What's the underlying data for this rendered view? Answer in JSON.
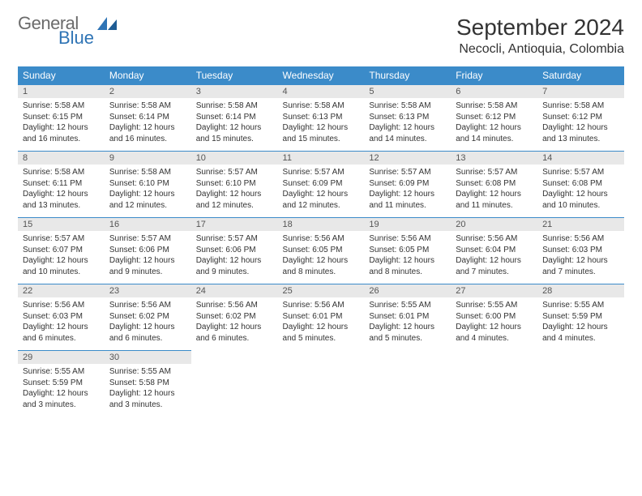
{
  "brand": {
    "name_top": "General",
    "name_bottom": "Blue"
  },
  "title": "September 2024",
  "location": "Necocli, Antioquia, Colombia",
  "colors": {
    "header_bg": "#3b8bc9",
    "header_fg": "#ffffff",
    "daynum_bg": "#e8e8e8",
    "rule": "#3b8bc9",
    "logo_gray": "#6b6b6b",
    "logo_blue": "#2f74b5"
  },
  "weekdays": [
    "Sunday",
    "Monday",
    "Tuesday",
    "Wednesday",
    "Thursday",
    "Friday",
    "Saturday"
  ],
  "cells": [
    {
      "n": "1",
      "sr": "Sunrise: 5:58 AM",
      "ss": "Sunset: 6:15 PM",
      "d1": "Daylight: 12 hours",
      "d2": "and 16 minutes."
    },
    {
      "n": "2",
      "sr": "Sunrise: 5:58 AM",
      "ss": "Sunset: 6:14 PM",
      "d1": "Daylight: 12 hours",
      "d2": "and 16 minutes."
    },
    {
      "n": "3",
      "sr": "Sunrise: 5:58 AM",
      "ss": "Sunset: 6:14 PM",
      "d1": "Daylight: 12 hours",
      "d2": "and 15 minutes."
    },
    {
      "n": "4",
      "sr": "Sunrise: 5:58 AM",
      "ss": "Sunset: 6:13 PM",
      "d1": "Daylight: 12 hours",
      "d2": "and 15 minutes."
    },
    {
      "n": "5",
      "sr": "Sunrise: 5:58 AM",
      "ss": "Sunset: 6:13 PM",
      "d1": "Daylight: 12 hours",
      "d2": "and 14 minutes."
    },
    {
      "n": "6",
      "sr": "Sunrise: 5:58 AM",
      "ss": "Sunset: 6:12 PM",
      "d1": "Daylight: 12 hours",
      "d2": "and 14 minutes."
    },
    {
      "n": "7",
      "sr": "Sunrise: 5:58 AM",
      "ss": "Sunset: 6:12 PM",
      "d1": "Daylight: 12 hours",
      "d2": "and 13 minutes."
    },
    {
      "n": "8",
      "sr": "Sunrise: 5:58 AM",
      "ss": "Sunset: 6:11 PM",
      "d1": "Daylight: 12 hours",
      "d2": "and 13 minutes."
    },
    {
      "n": "9",
      "sr": "Sunrise: 5:58 AM",
      "ss": "Sunset: 6:10 PM",
      "d1": "Daylight: 12 hours",
      "d2": "and 12 minutes."
    },
    {
      "n": "10",
      "sr": "Sunrise: 5:57 AM",
      "ss": "Sunset: 6:10 PM",
      "d1": "Daylight: 12 hours",
      "d2": "and 12 minutes."
    },
    {
      "n": "11",
      "sr": "Sunrise: 5:57 AM",
      "ss": "Sunset: 6:09 PM",
      "d1": "Daylight: 12 hours",
      "d2": "and 12 minutes."
    },
    {
      "n": "12",
      "sr": "Sunrise: 5:57 AM",
      "ss": "Sunset: 6:09 PM",
      "d1": "Daylight: 12 hours",
      "d2": "and 11 minutes."
    },
    {
      "n": "13",
      "sr": "Sunrise: 5:57 AM",
      "ss": "Sunset: 6:08 PM",
      "d1": "Daylight: 12 hours",
      "d2": "and 11 minutes."
    },
    {
      "n": "14",
      "sr": "Sunrise: 5:57 AM",
      "ss": "Sunset: 6:08 PM",
      "d1": "Daylight: 12 hours",
      "d2": "and 10 minutes."
    },
    {
      "n": "15",
      "sr": "Sunrise: 5:57 AM",
      "ss": "Sunset: 6:07 PM",
      "d1": "Daylight: 12 hours",
      "d2": "and 10 minutes."
    },
    {
      "n": "16",
      "sr": "Sunrise: 5:57 AM",
      "ss": "Sunset: 6:06 PM",
      "d1": "Daylight: 12 hours",
      "d2": "and 9 minutes."
    },
    {
      "n": "17",
      "sr": "Sunrise: 5:57 AM",
      "ss": "Sunset: 6:06 PM",
      "d1": "Daylight: 12 hours",
      "d2": "and 9 minutes."
    },
    {
      "n": "18",
      "sr": "Sunrise: 5:56 AM",
      "ss": "Sunset: 6:05 PM",
      "d1": "Daylight: 12 hours",
      "d2": "and 8 minutes."
    },
    {
      "n": "19",
      "sr": "Sunrise: 5:56 AM",
      "ss": "Sunset: 6:05 PM",
      "d1": "Daylight: 12 hours",
      "d2": "and 8 minutes."
    },
    {
      "n": "20",
      "sr": "Sunrise: 5:56 AM",
      "ss": "Sunset: 6:04 PM",
      "d1": "Daylight: 12 hours",
      "d2": "and 7 minutes."
    },
    {
      "n": "21",
      "sr": "Sunrise: 5:56 AM",
      "ss": "Sunset: 6:03 PM",
      "d1": "Daylight: 12 hours",
      "d2": "and 7 minutes."
    },
    {
      "n": "22",
      "sr": "Sunrise: 5:56 AM",
      "ss": "Sunset: 6:03 PM",
      "d1": "Daylight: 12 hours",
      "d2": "and 6 minutes."
    },
    {
      "n": "23",
      "sr": "Sunrise: 5:56 AM",
      "ss": "Sunset: 6:02 PM",
      "d1": "Daylight: 12 hours",
      "d2": "and 6 minutes."
    },
    {
      "n": "24",
      "sr": "Sunrise: 5:56 AM",
      "ss": "Sunset: 6:02 PM",
      "d1": "Daylight: 12 hours",
      "d2": "and 6 minutes."
    },
    {
      "n": "25",
      "sr": "Sunrise: 5:56 AM",
      "ss": "Sunset: 6:01 PM",
      "d1": "Daylight: 12 hours",
      "d2": "and 5 minutes."
    },
    {
      "n": "26",
      "sr": "Sunrise: 5:55 AM",
      "ss": "Sunset: 6:01 PM",
      "d1": "Daylight: 12 hours",
      "d2": "and 5 minutes."
    },
    {
      "n": "27",
      "sr": "Sunrise: 5:55 AM",
      "ss": "Sunset: 6:00 PM",
      "d1": "Daylight: 12 hours",
      "d2": "and 4 minutes."
    },
    {
      "n": "28",
      "sr": "Sunrise: 5:55 AM",
      "ss": "Sunset: 5:59 PM",
      "d1": "Daylight: 12 hours",
      "d2": "and 4 minutes."
    },
    {
      "n": "29",
      "sr": "Sunrise: 5:55 AM",
      "ss": "Sunset: 5:59 PM",
      "d1": "Daylight: 12 hours",
      "d2": "and 3 minutes."
    },
    {
      "n": "30",
      "sr": "Sunrise: 5:55 AM",
      "ss": "Sunset: 5:58 PM",
      "d1": "Daylight: 12 hours",
      "d2": "and 3 minutes."
    }
  ]
}
